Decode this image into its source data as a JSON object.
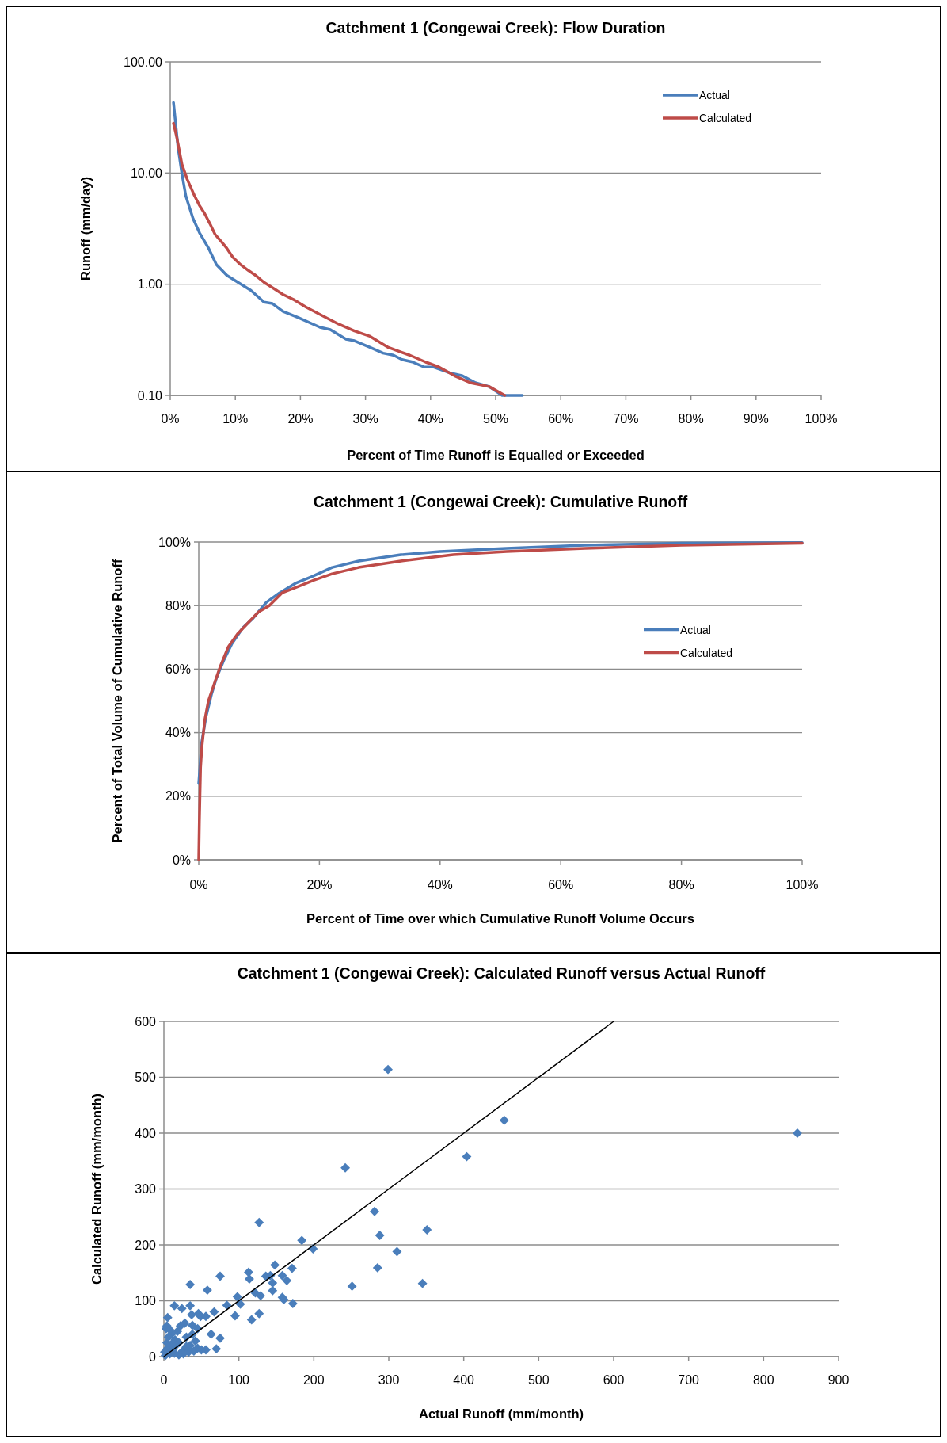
{
  "chart_data": [
    {
      "type": "line",
      "title": "Catchment 1 (Congewai Creek): Flow Duration",
      "xlabel": "Percent of Time Runoff  is Equalled or Exceeded",
      "ylabel": "Runoff (mm/day)",
      "log": "y",
      "grid": "y",
      "legend": "top right",
      "xlim": [
        0,
        100
      ],
      "xticks": [
        {
          "value": 0,
          "label": "0%"
        },
        {
          "value": 10,
          "label": "10%"
        },
        {
          "value": 20,
          "label": "20%"
        },
        {
          "value": 30,
          "label": "30%"
        },
        {
          "value": 40,
          "label": "40%"
        },
        {
          "value": 50,
          "label": "50%"
        },
        {
          "value": 60,
          "label": "60%"
        },
        {
          "value": 70,
          "label": "70%"
        },
        {
          "value": 80,
          "label": "80%"
        },
        {
          "value": 90,
          "label": "90%"
        },
        {
          "value": 100,
          "label": "100%"
        }
      ],
      "ylim": [
        0.1,
        100
      ],
      "yticks": [
        {
          "value": 0.1,
          "label": "0.10"
        },
        {
          "value": 1,
          "label": "1.00"
        },
        {
          "value": 10,
          "label": "10.00"
        },
        {
          "value": 100,
          "label": "100.00"
        }
      ],
      "series": [
        {
          "name": "Actual",
          "color": "#4a7ebb",
          "x": [
            0.5,
            1.2,
            1.8,
            2.4,
            3.5,
            4.5,
            5.9,
            7.1,
            8.7,
            10.4,
            12.4,
            14.4,
            15.7,
            17.3,
            19.7,
            23,
            24.6,
            27,
            28.3,
            30.7,
            32.7,
            34.3,
            35.6,
            37.2,
            39,
            40.4,
            42.9,
            44.9,
            46.9,
            49,
            51,
            54.1
          ],
          "values": [
            43,
            17,
            9.8,
            6.2,
            3.9,
            2.9,
            2.1,
            1.5,
            1.2,
            1.04,
            0.88,
            0.69,
            0.67,
            0.57,
            0.5,
            0.41,
            0.39,
            0.32,
            0.31,
            0.27,
            0.24,
            0.23,
            0.21,
            0.2,
            0.18,
            0.18,
            0.16,
            0.15,
            0.13,
            0.12,
            0.1,
            0.1
          ]
        },
        {
          "name": "Calculated",
          "color": "#be4b48",
          "x": [
            0.5,
            1,
            1.8,
            2.6,
            3.7,
            4.5,
            5.3,
            6.1,
            6.9,
            7.9,
            8.7,
            9.6,
            10.8,
            12,
            13.2,
            14.4,
            15.7,
            17.3,
            18.9,
            20.9,
            23.4,
            25.8,
            28.3,
            30.7,
            33.5,
            36.8,
            39.2,
            41.3,
            43.7,
            46.1,
            49,
            51.4
          ],
          "values": [
            28,
            21,
            12,
            8.8,
            6.3,
            5.1,
            4.3,
            3.5,
            2.8,
            2.4,
            2.1,
            1.75,
            1.5,
            1.33,
            1.19,
            1.04,
            0.93,
            0.81,
            0.73,
            0.62,
            0.52,
            0.44,
            0.38,
            0.34,
            0.27,
            0.23,
            0.2,
            0.18,
            0.15,
            0.13,
            0.12,
            0.1
          ]
        }
      ]
    },
    {
      "type": "line",
      "title": "Catchment 1 (Congewai Creek): Cumulative Runoff",
      "xlabel": "Percent of Time over which  Cumulative Runoff Volume Occurs",
      "ylabel": "Percent of Total Volume of Cumulative Runoff",
      "grid": "y",
      "legend": "right",
      "xlim": [
        0,
        100
      ],
      "xticks": [
        {
          "value": 0,
          "label": "0%"
        },
        {
          "value": 20,
          "label": "20%"
        },
        {
          "value": 40,
          "label": "40%"
        },
        {
          "value": 60,
          "label": "60%"
        },
        {
          "value": 80,
          "label": "80%"
        },
        {
          "value": 100,
          "label": "100%"
        }
      ],
      "ylim": [
        0,
        100
      ],
      "yticks": [
        {
          "value": 0,
          "label": "0%"
        },
        {
          "value": 20,
          "label": "20%"
        },
        {
          "value": 40,
          "label": "40%"
        },
        {
          "value": 60,
          "label": "60%"
        },
        {
          "value": 80,
          "label": "80%"
        },
        {
          "value": 100,
          "label": "100%"
        }
      ],
      "series": [
        {
          "name": "Actual",
          "color": "#4a7ebb",
          "x": [
            0,
            0.5,
            1.2,
            2.1,
            2.9,
            4.2,
            5.5,
            7.3,
            9,
            11.2,
            13.4,
            16,
            18.6,
            22.1,
            26.5,
            33.5,
            40,
            51,
            64,
            80,
            100
          ],
          "values": [
            24,
            37,
            45,
            52,
            57,
            63,
            68,
            73,
            76,
            81,
            84,
            87,
            89,
            92,
            94,
            96,
            97,
            98,
            99,
            99.6,
            99.8
          ]
        },
        {
          "name": "Calculated",
          "color": "#be4b48",
          "x": [
            0,
            0.1,
            0.3,
            0.5,
            1,
            1.6,
            2.5,
            3.6,
            4.9,
            6.4,
            7.9,
            9.9,
            11.7,
            13.8,
            16.5,
            19.1,
            22.1,
            26.5,
            33.5,
            42.2,
            51,
            64,
            80,
            100
          ],
          "values": [
            0,
            12,
            29,
            35,
            44,
            50,
            55,
            61,
            67,
            71,
            74,
            78,
            80,
            84,
            86,
            88,
            90,
            92,
            94,
            96,
            97,
            98,
            99,
            99.6
          ]
        }
      ]
    },
    {
      "type": "scatter",
      "title": "Catchment 1 (Congewai Creek): Calculated Runoff versus Actual Runoff",
      "xlabel": "Actual Runoff  (mm/month)",
      "ylabel": "Calculated Runoff (mm/month)",
      "grid": "y",
      "xlim": [
        0,
        900
      ],
      "xticks": [
        0,
        100,
        200,
        300,
        400,
        500,
        600,
        700,
        800,
        900
      ],
      "ylim": [
        0,
        600
      ],
      "yticks": [
        0,
        100,
        200,
        300,
        400,
        500,
        600
      ],
      "series": [
        {
          "color": "#4a7ebb",
          "marker": "diamond",
          "x": [
            845,
            299,
            242,
            454,
            404,
            127,
            281,
            288,
            351,
            311,
            285,
            345,
            251,
            184,
            199,
            148,
            171,
            75,
            35,
            58,
            113,
            114,
            136,
            142,
            145,
            158,
            164,
            145,
            122,
            129,
            158,
            160,
            172,
            98,
            102,
            84,
            95,
            117,
            127,
            67,
            14,
            24,
            35,
            37,
            46,
            49,
            56,
            38,
            45,
            5,
            63,
            75,
            56,
            70,
            4,
            10,
            15,
            5,
            20,
            25,
            30,
            8,
            2,
            12,
            35,
            40,
            45,
            50,
            18,
            22,
            28,
            4,
            1,
            6,
            16,
            26,
            33,
            42,
            38,
            3,
            10,
            30,
            20,
            14,
            8
          ],
          "values": [
            400,
            514,
            338,
            423,
            358,
            240,
            260,
            217,
            227,
            188,
            159,
            131,
            126,
            208,
            193,
            164,
            158,
            144,
            129,
            119,
            151,
            139,
            144,
            145,
            132,
            145,
            136,
            118,
            114,
            109,
            106,
            102,
            95,
            107,
            94,
            92,
            73,
            66,
            77,
            80,
            91,
            86,
            91,
            75,
            77,
            72,
            72,
            56,
            50,
            70,
            40,
            33,
            12,
            14,
            55,
            40,
            30,
            15,
            25,
            10,
            35,
            5,
            2,
            12,
            20,
            10,
            15,
            12,
            45,
            55,
            60,
            25,
            8,
            35,
            20,
            5,
            8,
            28,
            40,
            50,
            22,
            18,
            3,
            6,
            48
          ]
        },
        {
          "type": "line",
          "color": "#000000",
          "marker": "none",
          "x": [
            0,
            600
          ],
          "values": [
            0,
            600
          ]
        }
      ]
    }
  ]
}
